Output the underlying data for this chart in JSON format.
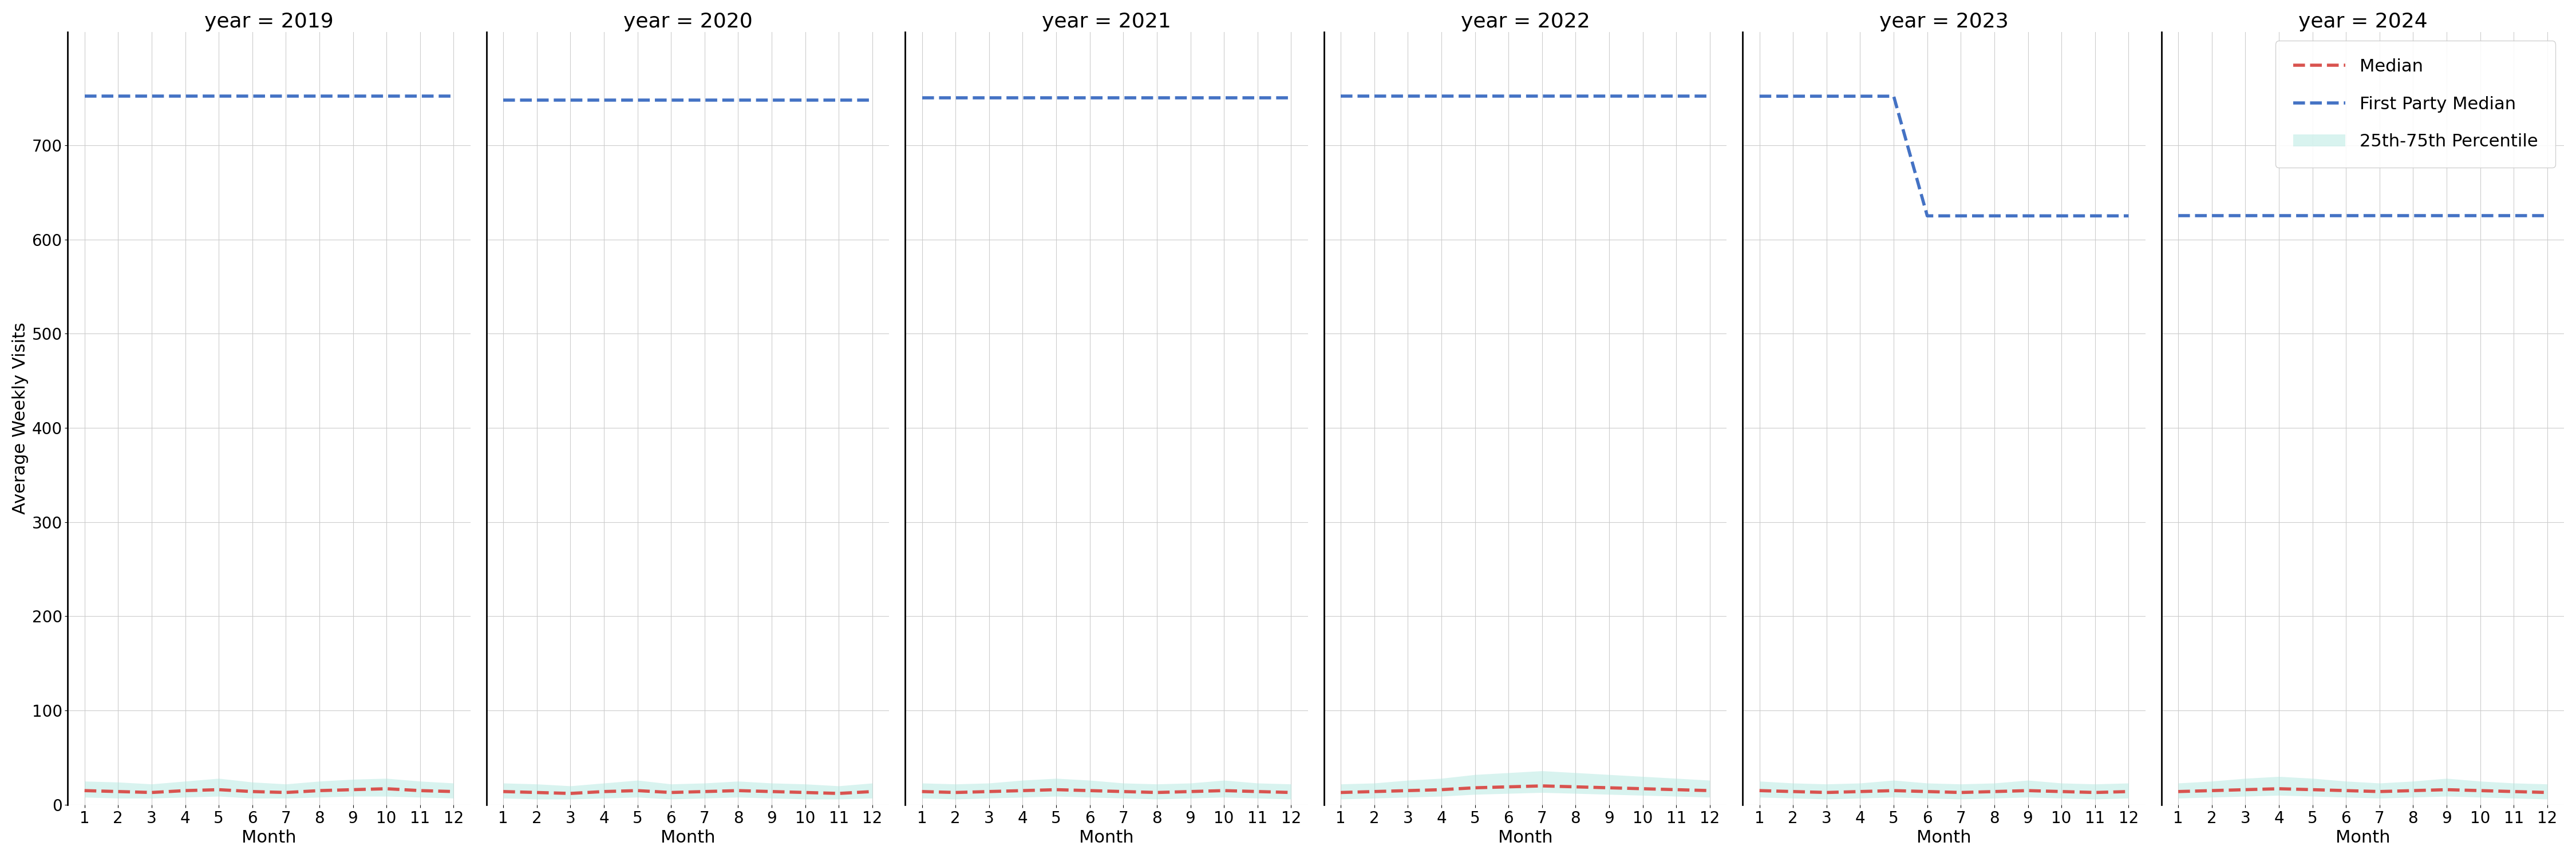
{
  "years": [
    2019,
    2020,
    2021,
    2022,
    2023,
    2024
  ],
  "months": [
    1,
    2,
    3,
    4,
    5,
    6,
    7,
    8,
    9,
    10,
    11,
    12
  ],
  "first_party_median": {
    "2019": [
      752,
      752,
      752,
      752,
      752,
      752,
      752,
      752,
      752,
      752,
      752,
      752
    ],
    "2020": [
      748,
      748,
      748,
      748,
      748,
      748,
      748,
      748,
      748,
      748,
      748,
      748
    ],
    "2021": [
      750,
      750,
      750,
      750,
      750,
      750,
      750,
      750,
      750,
      750,
      750,
      750
    ],
    "2022": [
      752,
      752,
      752,
      752,
      752,
      752,
      752,
      752,
      752,
      752,
      752,
      752
    ],
    "2023": [
      752,
      752,
      752,
      752,
      752,
      625,
      625,
      625,
      625,
      625,
      625,
      625
    ],
    "2024": [
      625,
      625,
      625,
      625,
      625,
      625,
      625,
      625,
      625,
      625,
      625,
      625
    ]
  },
  "median": {
    "2019": [
      15,
      14,
      13,
      15,
      16,
      14,
      13,
      15,
      16,
      17,
      15,
      14
    ],
    "2020": [
      14,
      13,
      12,
      14,
      15,
      13,
      14,
      15,
      14,
      13,
      12,
      14
    ],
    "2021": [
      14,
      13,
      14,
      15,
      16,
      15,
      14,
      13,
      14,
      15,
      14,
      13
    ],
    "2022": [
      13,
      14,
      15,
      16,
      18,
      19,
      20,
      19,
      18,
      17,
      16,
      15
    ],
    "2023": [
      15,
      14,
      13,
      14,
      15,
      14,
      13,
      14,
      15,
      14,
      13,
      14
    ],
    "2024": [
      14,
      15,
      16,
      17,
      16,
      15,
      14,
      15,
      16,
      15,
      14,
      13
    ]
  },
  "p25": {
    "2019": [
      8,
      7,
      7,
      8,
      9,
      7,
      7,
      8,
      9,
      9,
      8,
      7
    ],
    "2020": [
      7,
      6,
      6,
      7,
      8,
      6,
      7,
      8,
      7,
      6,
      6,
      7
    ],
    "2021": [
      7,
      6,
      7,
      8,
      9,
      8,
      7,
      6,
      7,
      8,
      7,
      6
    ],
    "2022": [
      6,
      7,
      8,
      9,
      11,
      12,
      13,
      12,
      11,
      10,
      9,
      8
    ],
    "2023": [
      8,
      7,
      6,
      7,
      8,
      7,
      6,
      7,
      8,
      7,
      6,
      7
    ],
    "2024": [
      7,
      8,
      9,
      10,
      9,
      8,
      7,
      8,
      9,
      8,
      7,
      6
    ]
  },
  "p75": {
    "2019": [
      25,
      24,
      22,
      25,
      28,
      24,
      22,
      25,
      27,
      28,
      25,
      23
    ],
    "2020": [
      23,
      22,
      20,
      23,
      26,
      22,
      23,
      25,
      23,
      22,
      20,
      23
    ],
    "2021": [
      23,
      22,
      23,
      26,
      28,
      26,
      23,
      22,
      23,
      26,
      23,
      22
    ],
    "2022": [
      22,
      23,
      26,
      28,
      32,
      34,
      36,
      34,
      32,
      30,
      28,
      26
    ],
    "2023": [
      25,
      23,
      22,
      23,
      26,
      23,
      22,
      23,
      26,
      23,
      22,
      23
    ],
    "2024": [
      23,
      25,
      28,
      30,
      28,
      25,
      23,
      25,
      28,
      25,
      23,
      22
    ]
  },
  "ylim": [
    0,
    820
  ],
  "yticks": [
    0,
    100,
    200,
    300,
    400,
    500,
    600,
    700
  ],
  "xticks": [
    1,
    2,
    3,
    4,
    5,
    6,
    7,
    8,
    9,
    10,
    11,
    12
  ],
  "median_color": "#d9534f",
  "fp_median_color": "#4472c4",
  "fill_color": "#b2e8e0",
  "fill_alpha": 0.5,
  "ylabel": "Average Weekly Visits",
  "xlabel": "Month",
  "background_color": "#ffffff",
  "grid_color": "#cccccc",
  "title_fontsize": 26,
  "axis_label_fontsize": 22,
  "tick_fontsize": 20,
  "legend_fontsize": 22,
  "line_width": 4.0
}
